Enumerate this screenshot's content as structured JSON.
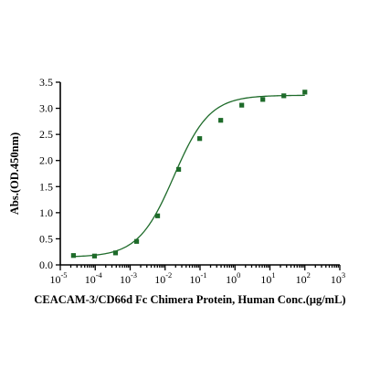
{
  "chart_data": {
    "type": "scatter",
    "title": "",
    "xlabel": "CEACAM-3/CD66d Fc Chimera Protein, Human Conc.(μg/mL)",
    "ylabel": "Abs.(OD.450nm)",
    "x_scale": "log",
    "xlim": [
      1e-05,
      1000
    ],
    "ylim": [
      0,
      3.5
    ],
    "x_tick_exponents": [
      "-5",
      "-4",
      "-3",
      "-2",
      "-1",
      "0",
      "1",
      "2",
      "3"
    ],
    "y_ticks": [
      "0.0",
      "0.5",
      "1.0",
      "1.5",
      "2.0",
      "2.5",
      "3.0",
      "3.5"
    ],
    "grid": false,
    "marker_color": "#1e6b2a",
    "curve_color": "#1e6b2a",
    "series": [
      {
        "x": [
          2.38e-05,
          9.54e-05,
          0.000381,
          0.00153,
          0.0061,
          0.0244,
          0.0977,
          0.391,
          1.56,
          6.25,
          25,
          100
        ],
        "y": [
          0.18,
          0.17,
          0.23,
          0.45,
          0.94,
          1.83,
          2.42,
          2.77,
          3.06,
          3.17,
          3.24,
          3.31
        ]
      }
    ],
    "fit_curve": {
      "model": "4PL",
      "bottom": 0.15,
      "top": 3.25,
      "ec50": 0.0179,
      "hill": 0.85
    }
  }
}
